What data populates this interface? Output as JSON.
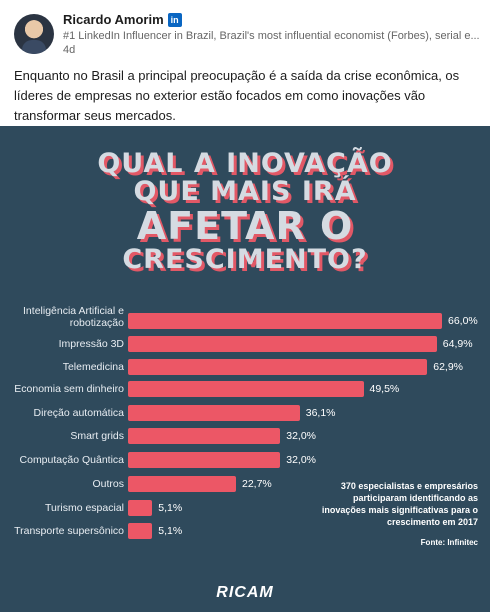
{
  "post": {
    "author": "Ricardo Amorim",
    "badge": "in",
    "headline": "#1 LinkedIn Influencer in Brazil, Brazil's most influential economist (Forbes), serial e...",
    "time": "4d",
    "text": "Enquanto no Brasil a principal preocupação é a saída da crise econômica, os líderes de empresas no exterior estão focados em como inovações vão transformar seus mercados."
  },
  "infographic": {
    "title_lines": [
      "QUAL A INOVAÇÃO",
      "QUE MAIS IRÁ",
      "AFETAR O",
      "CRESCIMENTO?"
    ],
    "note": "370 especialistas e empresários participaram identificando as inovações mais significativas para o crescimento em 2017",
    "source": "Fonte: Infinitec",
    "brand": "RICAM",
    "colors": {
      "background": "#2f4a5c",
      "bar": "#ec5766",
      "title": "#d5dbe2"
    }
  },
  "chart_data": {
    "type": "bar",
    "orientation": "horizontal",
    "categories": [
      "Inteligência Artificial e robotização",
      "Impressão 3D",
      "Telemedicina",
      "Economia sem dinheiro",
      "Direção automática",
      "Smart grids",
      "Computação Quântica",
      "Outros",
      "Turismo espacial",
      "Transporte supersônico"
    ],
    "values": [
      66.0,
      64.9,
      62.9,
      49.5,
      36.1,
      32.0,
      32.0,
      22.7,
      5.1,
      5.1
    ],
    "value_labels": [
      "66,0%",
      "64,9%",
      "62,9%",
      "49,5%",
      "36,1%",
      "32,0%",
      "32,0%",
      "22,7%",
      "5,1%",
      "5,1%"
    ],
    "title": "QUAL A INOVAÇÃO QUE MAIS IRÁ AFETAR O CRESCIMENTO?",
    "xlim": [
      0,
      66
    ],
    "grid": false,
    "legend": "none"
  }
}
